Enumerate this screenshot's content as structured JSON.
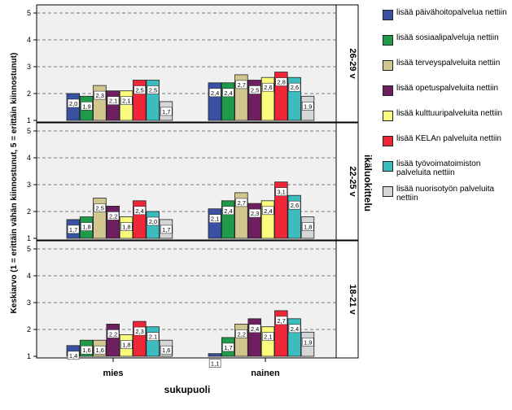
{
  "chart_data": {
    "type": "bar",
    "ylabel": "Keskiarvo (1 = erittäin vähän kiinnostunut, 5 = erittäin kiinnostunut)",
    "xlabel": "sukupuoli",
    "panel_axis_label": "ikäluokittelu",
    "ylim": [
      1,
      5
    ],
    "yticks": [
      "1",
      "2",
      "3",
      "4",
      "5"
    ],
    "categories": [
      "mies",
      "nainen"
    ],
    "series": [
      {
        "name": "lisää päivähoitopalvelua nettiin",
        "color": "#3950a3"
      },
      {
        "name": "lisää sosiaalipalveluja nettiin",
        "color": "#1f9a48"
      },
      {
        "name": "lisää terveyspalveluita nettiin",
        "color": "#d2c68f"
      },
      {
        "name": "lisää opetuspalveluita nettiin",
        "color": "#6e1f61"
      },
      {
        "name": "lisää kulttuuripalveluita nettiin",
        "color": "#fbfb7e"
      },
      {
        "name": "lisää KELAn palveluita nettiin",
        "color": "#ef2637"
      },
      {
        "name": "lisää työvoimatoimiston palveluita nettiin",
        "color": "#3bbcbe"
      },
      {
        "name": "lisää nuorisotyön palveluita nettiin",
        "color": "#d6d6d6"
      }
    ],
    "panels": [
      {
        "label": "26-29 v",
        "values": [
          [
            2.0,
            1.9,
            2.3,
            2.1,
            2.1,
            2.5,
            2.5,
            1.7
          ],
          [
            2.4,
            2.4,
            2.7,
            2.5,
            2.6,
            2.8,
            2.6,
            1.9
          ]
        ],
        "labels": [
          [
            "2,0",
            "1,9",
            "2,3",
            "2,1",
            "2,1",
            "2,5",
            "2,5",
            "1,7"
          ],
          [
            "2,4",
            "2,4",
            "2,7",
            "2,5",
            "2,6",
            "2,8",
            "2,6",
            "1,9"
          ]
        ]
      },
      {
        "label": "22-25 v",
        "values": [
          [
            1.7,
            1.8,
            2.5,
            2.2,
            1.8,
            2.4,
            2.0,
            1.7
          ],
          [
            2.1,
            2.4,
            2.7,
            2.3,
            2.4,
            3.1,
            2.6,
            1.8
          ]
        ],
        "labels": [
          [
            "1,7",
            "1,8",
            "2,5",
            "2,2",
            "1,8",
            "2,4",
            "2,0",
            "1,7"
          ],
          [
            "2,1",
            "2,4",
            "2,7",
            "2,3",
            "2,4",
            "3,1",
            "2,6",
            "1,8"
          ]
        ]
      },
      {
        "label": "18-21 v",
        "values": [
          [
            1.4,
            1.6,
            1.6,
            2.2,
            1.8,
            2.3,
            2.1,
            1.6
          ],
          [
            1.1,
            1.7,
            2.2,
            2.4,
            2.1,
            2.7,
            2.4,
            1.9
          ]
        ],
        "labels": [
          [
            "1,4",
            "1,6",
            "1,6",
            "2,2",
            "1,8",
            "2,3",
            "2,1",
            "1,6"
          ],
          [
            "1,1",
            "1,7",
            "2,2",
            "2,4",
            "2,1",
            "2,7",
            "2,4",
            "1,9"
          ]
        ]
      }
    ]
  }
}
